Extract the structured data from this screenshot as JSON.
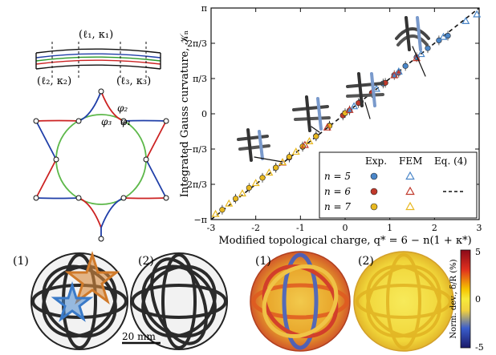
{
  "top_left": {
    "strip_labels": [
      "(ℓ₂, κ₂)",
      "(ℓ₁, κ₁)",
      "(ℓ₃, κ₃)"
    ],
    "angle_labels": [
      "φ₂",
      "φ₃",
      "φ₁"
    ]
  },
  "chart_data": {
    "type": "scatter",
    "ylabel": "Integrated Gauss curvature, 𝒦ₙ",
    "xlabel": "Modified topological charge, q* = 6 − n(1 + κ*)",
    "xlim": [
      -3,
      3
    ],
    "ylim": [
      -3.1416,
      3.1416
    ],
    "x_ticks": [
      "-3",
      "-2",
      "-1",
      "0",
      "1",
      "2",
      "3"
    ],
    "y_ticks": [
      "−π",
      "−2π/3",
      "−π/3",
      "0",
      "π/3",
      "2π/3",
      "π"
    ],
    "legend": {
      "headers": [
        "Exp.",
        "FEM",
        "Eq. (4)"
      ],
      "rows": [
        "n = 5",
        "n = 6",
        "n = 7"
      ],
      "colors": [
        "#4a86c8",
        "#c0392b",
        "#e8b820"
      ],
      "placement": "bottom-right"
    },
    "series": [
      {
        "name": "n = 5",
        "kind": "exp",
        "color": "#4a86c8",
        "x": [
          0.1,
          0.35,
          0.6,
          0.85,
          1.1,
          1.35,
          1.6,
          1.85,
          2.1,
          2.3
        ],
        "y": [
          0.1,
          0.36,
          0.62,
          0.9,
          1.15,
          1.42,
          1.68,
          1.95,
          2.18,
          2.32
        ]
      },
      {
        "name": "n = 6",
        "kind": "exp",
        "color": "#c0392b",
        "x": [
          -1.55,
          -1.25,
          -0.95,
          -0.65,
          -0.35,
          -0.05,
          0.3,
          0.6,
          0.9,
          1.2
        ],
        "y": [
          -1.6,
          -1.3,
          -0.98,
          -0.66,
          -0.35,
          -0.05,
          0.32,
          0.62,
          0.92,
          1.22
        ]
      },
      {
        "name": "n = 7",
        "kind": "exp",
        "color": "#e8b820",
        "x": [
          -2.75,
          -2.45,
          -2.15,
          -1.85,
          -1.55,
          -1.25,
          -0.95,
          -0.65,
          -0.35,
          0.0
        ],
        "y": [
          -2.85,
          -2.52,
          -2.2,
          -1.9,
          -1.6,
          -1.28,
          -0.97,
          -0.67,
          -0.36,
          0.02
        ]
      },
      {
        "name": "n = 5",
        "kind": "fem",
        "color": "#4a86c8",
        "x": [
          0.2,
          0.7,
          1.2,
          1.7,
          2.2,
          2.7,
          2.95
        ],
        "y": [
          0.22,
          0.74,
          1.25,
          1.77,
          2.28,
          2.75,
          2.95
        ]
      },
      {
        "name": "n = 6",
        "kind": "fem",
        "color": "#c0392b",
        "x": [
          -1.4,
          -0.9,
          -0.4,
          0.1,
          0.6,
          1.1,
          1.6
        ],
        "y": [
          -1.45,
          -0.93,
          -0.41,
          0.11,
          0.62,
          1.14,
          1.65
        ]
      },
      {
        "name": "n = 7",
        "kind": "fem",
        "color": "#e8b820",
        "x": [
          -2.9,
          -2.6,
          -2.3,
          -2.0,
          -1.7,
          -1.4,
          -1.1,
          -0.8
        ],
        "y": [
          -2.98,
          -2.67,
          -2.37,
          -2.06,
          -1.75,
          -1.44,
          -1.13,
          -0.82
        ]
      }
    ],
    "theory_line": {
      "name": "Eq. (4)",
      "x": [
        -3,
        3
      ],
      "y": [
        -3.1416,
        3.1416
      ]
    }
  },
  "bottom": {
    "panel_labels": [
      "(1)",
      "(2)",
      "(1)",
      "(2)"
    ],
    "scale_bar": "20 mm",
    "colorbar": {
      "label": "Norm. dev., δ/R (%)",
      "ticks": [
        "5",
        "0",
        "-5"
      ]
    }
  }
}
